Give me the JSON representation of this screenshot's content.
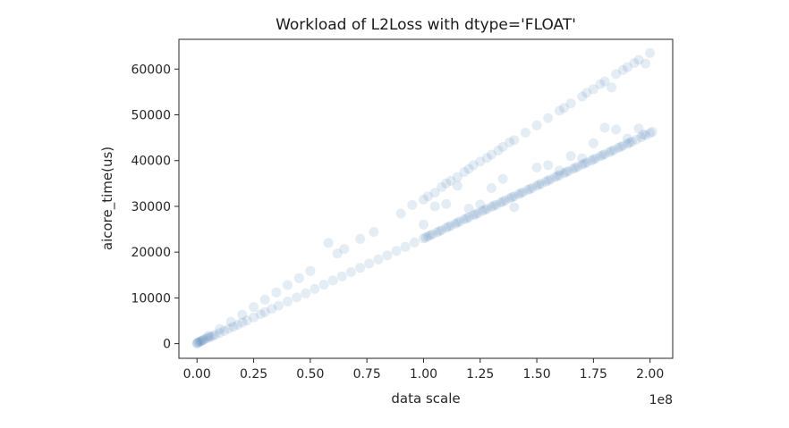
{
  "chart_data": {
    "type": "scatter",
    "title": "Workload of L2Loss with dtype='FLOAT'",
    "xlabel": "data scale",
    "ylabel": "aicore_time(us)",
    "x_offset_text": "1e8",
    "xlim": [
      -0.08,
      2.1
    ],
    "ylim": [
      -3200,
      66500
    ],
    "x_ticks": [
      0.0,
      0.25,
      0.5,
      0.75,
      1.0,
      1.25,
      1.5,
      1.75,
      2.0
    ],
    "x_tick_labels": [
      "0.00",
      "0.25",
      "0.50",
      "0.75",
      "1.00",
      "1.25",
      "1.50",
      "1.75",
      "2.00"
    ],
    "y_ticks": [
      0,
      10000,
      20000,
      30000,
      40000,
      50000,
      60000
    ],
    "y_tick_labels": [
      "0",
      "10000",
      "20000",
      "30000",
      "40000",
      "50000",
      "60000"
    ],
    "grid": false,
    "marker_color": "#4a7fb5",
    "marker_alpha": 0.15,
    "series": [
      {
        "points": [
          [
            0.0,
            0
          ],
          [
            0.0,
            150
          ],
          [
            0.005,
            300
          ],
          [
            0.01,
            400
          ],
          [
            0.015,
            500
          ],
          [
            0.02,
            600
          ],
          [
            0.025,
            750
          ],
          [
            0.03,
            900
          ],
          [
            0.04,
            1100
          ],
          [
            0.05,
            1300
          ],
          [
            0.06,
            1500
          ],
          [
            0.07,
            1700
          ],
          [
            0.08,
            1900
          ],
          [
            0.1,
            2350
          ],
          [
            0.12,
            2800
          ],
          [
            0.14,
            3250
          ],
          [
            0.16,
            3700
          ],
          [
            0.18,
            4100
          ],
          [
            0.2,
            4600
          ],
          [
            0.22,
            5050
          ],
          [
            0.25,
            5750
          ],
          [
            0.28,
            6450
          ],
          [
            0.3,
            6900
          ],
          [
            0.33,
            7600
          ],
          [
            0.36,
            8300
          ],
          [
            0.4,
            9200
          ],
          [
            0.44,
            10100
          ],
          [
            0.48,
            11000
          ],
          [
            0.52,
            11950
          ],
          [
            0.56,
            12900
          ],
          [
            0.6,
            13800
          ],
          [
            0.64,
            14700
          ],
          [
            0.68,
            15650
          ],
          [
            0.72,
            16550
          ],
          [
            0.76,
            17500
          ],
          [
            0.8,
            18400
          ],
          [
            0.84,
            19300
          ],
          [
            0.88,
            20250
          ],
          [
            0.92,
            21150
          ],
          [
            0.96,
            22100
          ],
          [
            1.0,
            23000
          ],
          [
            1.01,
            23200
          ],
          [
            1.02,
            23450
          ],
          [
            1.04,
            23900
          ],
          [
            1.06,
            24350
          ],
          [
            1.08,
            24800
          ],
          [
            1.1,
            25300
          ],
          [
            1.12,
            25750
          ],
          [
            1.14,
            26200
          ],
          [
            1.16,
            26700
          ],
          [
            1.18,
            27150
          ],
          [
            1.2,
            27600
          ],
          [
            1.22,
            28050
          ],
          [
            1.24,
            28500
          ],
          [
            1.26,
            29000
          ],
          [
            1.28,
            29450
          ],
          [
            1.3,
            29900
          ],
          [
            1.32,
            30350
          ],
          [
            1.34,
            30800
          ],
          [
            1.36,
            31300
          ],
          [
            1.38,
            31750
          ],
          [
            1.4,
            32200
          ],
          [
            1.42,
            32650
          ],
          [
            1.44,
            33100
          ],
          [
            1.46,
            33600
          ],
          [
            1.48,
            34050
          ],
          [
            1.5,
            34500
          ],
          [
            1.52,
            34950
          ],
          [
            1.54,
            35400
          ],
          [
            1.56,
            35900
          ],
          [
            1.58,
            36350
          ],
          [
            1.6,
            36800
          ],
          [
            1.62,
            37250
          ],
          [
            1.64,
            37700
          ],
          [
            1.66,
            38200
          ],
          [
            1.68,
            38650
          ],
          [
            1.7,
            39100
          ],
          [
            1.72,
            39550
          ],
          [
            1.74,
            40000
          ],
          [
            1.76,
            40500
          ],
          [
            1.78,
            40950
          ],
          [
            1.8,
            41400
          ],
          [
            1.82,
            41850
          ],
          [
            1.84,
            42300
          ],
          [
            1.86,
            42800
          ],
          [
            1.88,
            43250
          ],
          [
            1.9,
            43700
          ],
          [
            1.92,
            44150
          ],
          [
            1.94,
            44600
          ],
          [
            1.96,
            45100
          ],
          [
            1.98,
            45550
          ],
          [
            2.0,
            46000
          ],
          [
            2.01,
            46300
          ],
          [
            1.97,
            45700
          ],
          [
            1.91,
            43900
          ],
          [
            1.87,
            43000
          ],
          [
            1.83,
            42100
          ],
          [
            1.79,
            41200
          ],
          [
            1.75,
            40250
          ],
          [
            1.71,
            39350
          ],
          [
            1.67,
            38450
          ],
          [
            1.63,
            37500
          ],
          [
            1.59,
            36600
          ],
          [
            1.55,
            35650
          ],
          [
            1.51,
            34750
          ],
          [
            1.47,
            33800
          ],
          [
            1.43,
            32900
          ],
          [
            1.39,
            32000
          ],
          [
            1.35,
            31050
          ],
          [
            1.31,
            30150
          ],
          [
            1.27,
            29200
          ],
          [
            1.23,
            28300
          ],
          [
            1.19,
            27400
          ],
          [
            1.15,
            26450
          ],
          [
            1.11,
            25550
          ],
          [
            1.07,
            24600
          ],
          [
            1.03,
            23700
          ]
        ]
      },
      {
        "points": [
          [
            0.05,
            1700
          ],
          [
            0.1,
            3200
          ],
          [
            0.15,
            4800
          ],
          [
            0.2,
            6300
          ],
          [
            0.25,
            8000
          ],
          [
            0.3,
            9600
          ],
          [
            0.35,
            11200
          ],
          [
            0.4,
            12800
          ],
          [
            0.45,
            14300
          ],
          [
            0.5,
            15900
          ],
          [
            0.58,
            22000
          ],
          [
            0.62,
            19700
          ],
          [
            0.65,
            20700
          ],
          [
            0.72,
            22900
          ],
          [
            0.78,
            24400
          ],
          [
            0.9,
            28400
          ],
          [
            0.95,
            30300
          ],
          [
            1.0,
            31500
          ],
          [
            1.02,
            32200
          ],
          [
            1.05,
            33000
          ],
          [
            1.08,
            34200
          ],
          [
            1.1,
            35000
          ],
          [
            1.12,
            35600
          ],
          [
            1.15,
            36400
          ],
          [
            1.18,
            37500
          ],
          [
            1.2,
            38200
          ],
          [
            1.22,
            39000
          ],
          [
            1.25,
            39800
          ],
          [
            1.28,
            40600
          ],
          [
            1.3,
            41300
          ],
          [
            1.33,
            42200
          ],
          [
            1.35,
            43000
          ],
          [
            1.38,
            44000
          ],
          [
            1.4,
            44500
          ],
          [
            1.45,
            46100
          ],
          [
            1.5,
            47700
          ],
          [
            1.55,
            49300
          ],
          [
            1.6,
            50900
          ],
          [
            1.62,
            51500
          ],
          [
            1.65,
            52500
          ],
          [
            1.7,
            54000
          ],
          [
            1.72,
            54800
          ],
          [
            1.75,
            55600
          ],
          [
            1.78,
            56700
          ],
          [
            1.8,
            57300
          ],
          [
            1.85,
            58900
          ],
          [
            1.88,
            59800
          ],
          [
            1.9,
            60400
          ],
          [
            1.93,
            61300
          ],
          [
            1.95,
            62000
          ],
          [
            2.0,
            63500
          ],
          [
            1.98,
            61200
          ],
          [
            1.83,
            56000
          ],
          [
            1.2,
            29500
          ],
          [
            1.4,
            29800
          ],
          [
            1.35,
            36000
          ],
          [
            1.5,
            38500
          ],
          [
            1.55,
            39000
          ],
          [
            1.6,
            37800
          ],
          [
            1.65,
            41000
          ],
          [
            1.7,
            40500
          ],
          [
            1.75,
            43800
          ],
          [
            1.8,
            47200
          ],
          [
            1.85,
            46800
          ],
          [
            1.9,
            44800
          ],
          [
            1.95,
            47000
          ],
          [
            1.1,
            30500
          ],
          [
            1.3,
            34000
          ],
          [
            1.0,
            26000
          ],
          [
            1.05,
            30000
          ],
          [
            1.15,
            34500
          ],
          [
            1.25,
            30400
          ]
        ]
      }
    ]
  }
}
